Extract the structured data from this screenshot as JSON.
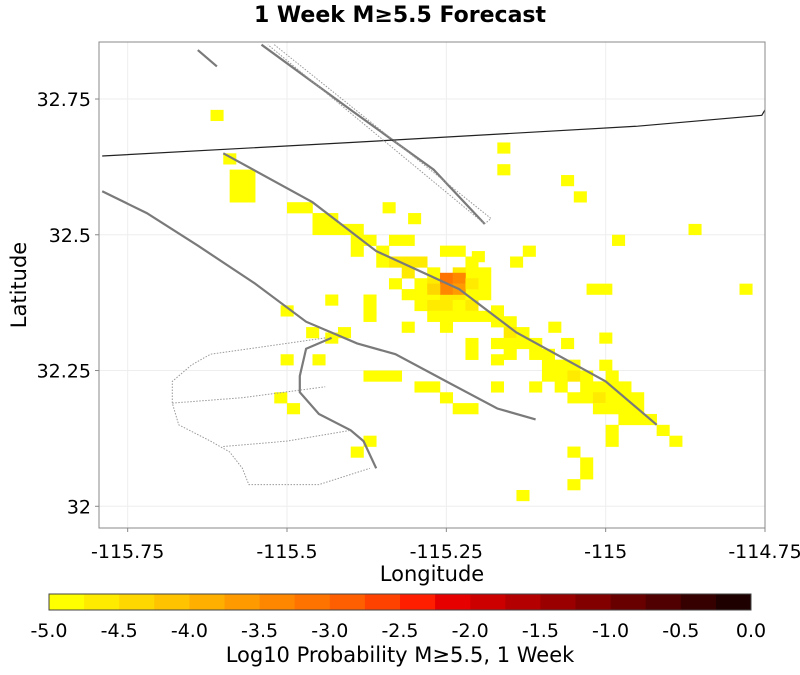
{
  "chart_data": {
    "type": "heatmap",
    "title": "1 Week M≥5.5 Forecast",
    "xlabel": "Longitude",
    "ylabel": "Latitude",
    "xlim": [
      -115.795,
      -114.75
    ],
    "ylim": [
      31.96,
      32.855
    ],
    "grid": true,
    "cell_size_deg": 0.02,
    "x_ticks": [
      {
        "value": -115.75,
        "label": "-115.75"
      },
      {
        "value": -115.5,
        "label": "-115.5"
      },
      {
        "value": -115.25,
        "label": "-115.25"
      },
      {
        "value": -115,
        "label": "-115"
      },
      {
        "value": -114.75,
        "label": "-114.75"
      }
    ],
    "y_ticks": [
      {
        "value": 32.75,
        "label": "32.75"
      },
      {
        "value": 32.5,
        "label": "32.5"
      },
      {
        "value": 32.25,
        "label": "32.25"
      },
      {
        "value": 32,
        "label": "32"
      }
    ],
    "colorbar": {
      "label": "Log10 Probability M≥5.5, 1 Week",
      "min": -5.0,
      "max": 0.0,
      "tick_labels": [
        "-5.0",
        "-4.5",
        "-4.0",
        "-3.5",
        "-3.0",
        "-2.5",
        "-2.0",
        "-1.5",
        "-1.0",
        "-0.5",
        "0.0"
      ],
      "colors": [
        "#ffff00",
        "#ffeb00",
        "#ffd700",
        "#ffc300",
        "#ffaf00",
        "#ff9b00",
        "#ff8700",
        "#ff7300",
        "#ff5f00",
        "#ff4200",
        "#ff1e00",
        "#e60000",
        "#cd0000",
        "#b40000",
        "#9b0000",
        "#820000",
        "#690000",
        "#500000",
        "#370000",
        "#1e0000"
      ]
    },
    "cells": [
      [
        -115.61,
        32.72,
        -4.9
      ],
      [
        -115.59,
        32.64,
        -4.9
      ],
      [
        -115.58,
        32.61,
        -4.9
      ],
      [
        -115.56,
        32.61,
        -4.9
      ],
      [
        -115.58,
        32.59,
        -4.9
      ],
      [
        -115.56,
        32.59,
        -4.9
      ],
      [
        -115.58,
        32.57,
        -4.9
      ],
      [
        -115.56,
        32.57,
        -4.9
      ],
      [
        -115.16,
        32.66,
        -4.9
      ],
      [
        -115.16,
        32.62,
        -4.9
      ],
      [
        -115.06,
        32.6,
        -4.9
      ],
      [
        -115.04,
        32.57,
        -4.9
      ],
      [
        -115.34,
        32.55,
        -4.9
      ],
      [
        -115.3,
        32.53,
        -4.9
      ],
      [
        -115.49,
        32.55,
        -4.9
      ],
      [
        -115.47,
        32.55,
        -4.9
      ],
      [
        -115.45,
        32.53,
        -4.9
      ],
      [
        -115.43,
        32.53,
        -4.9
      ],
      [
        -115.41,
        32.51,
        -4.9
      ],
      [
        -115.39,
        32.51,
        -4.9
      ],
      [
        -115.45,
        32.51,
        -4.9
      ],
      [
        -115.43,
        32.51,
        -4.9
      ],
      [
        -115.39,
        32.49,
        -4.9
      ],
      [
        -115.37,
        32.49,
        -4.9
      ],
      [
        -115.33,
        32.49,
        -4.9
      ],
      [
        -115.31,
        32.49,
        -4.9
      ],
      [
        -114.86,
        32.51,
        -4.9
      ],
      [
        -114.98,
        32.49,
        -4.9
      ],
      [
        -115.39,
        32.47,
        -4.9
      ],
      [
        -115.35,
        32.47,
        -4.9
      ],
      [
        -115.35,
        32.45,
        -4.9
      ],
      [
        -115.25,
        32.47,
        -4.9
      ],
      [
        -115.23,
        32.47,
        -4.9
      ],
      [
        -115.21,
        32.45,
        -4.9
      ],
      [
        -115.2,
        32.46,
        -4.9
      ],
      [
        -115.21,
        32.43,
        -4.9
      ],
      [
        -115.12,
        32.47,
        -4.9
      ],
      [
        -115.14,
        32.45,
        -4.9
      ],
      [
        -115.33,
        32.45,
        -4.75
      ],
      [
        -115.31,
        32.43,
        -4.75
      ],
      [
        -115.31,
        32.45,
        -4.75
      ],
      [
        -115.29,
        32.45,
        -4.75
      ],
      [
        -115.29,
        32.41,
        -4.9
      ],
      [
        -115.27,
        32.41,
        -4.75
      ],
      [
        -115.27,
        32.43,
        -4.9
      ],
      [
        -115.23,
        32.43,
        -4.75
      ],
      [
        -115.19,
        32.43,
        -4.9
      ],
      [
        -115.33,
        32.41,
        -4.9
      ],
      [
        -115.31,
        32.39,
        -4.9
      ],
      [
        -115.29,
        32.39,
        -4.9
      ],
      [
        -115.27,
        32.39,
        -4.9
      ],
      [
        -115.25,
        32.39,
        -4.75
      ],
      [
        -115.23,
        32.39,
        -4.75
      ],
      [
        -115.21,
        32.39,
        -4.9
      ],
      [
        -115.19,
        32.41,
        -4.9
      ],
      [
        -115.29,
        32.37,
        -4.9
      ],
      [
        -115.27,
        32.37,
        -4.75
      ],
      [
        -115.25,
        32.37,
        -4.75
      ],
      [
        -115.23,
        32.37,
        -4.9
      ],
      [
        -115.21,
        32.37,
        -4.75
      ],
      [
        -115.19,
        32.39,
        -4.9
      ],
      [
        -115.27,
        32.35,
        -4.9
      ],
      [
        -115.25,
        32.35,
        -4.9
      ],
      [
        -115.23,
        32.35,
        -4.9
      ],
      [
        -115.21,
        32.35,
        -4.9
      ],
      [
        -115.19,
        32.35,
        -4.9
      ],
      [
        -115.25,
        32.42,
        -3.1
      ],
      [
        -115.23,
        32.42,
        -3.4
      ],
      [
        -115.25,
        32.4,
        -3.4
      ],
      [
        -115.23,
        32.4,
        -3.6
      ],
      [
        -115.27,
        32.4,
        -4.5
      ],
      [
        -115.21,
        32.41,
        -4.6
      ],
      [
        -115.02,
        32.4,
        -4.9
      ],
      [
        -115.0,
        32.4,
        -4.9
      ],
      [
        -114.78,
        32.4,
        -4.9
      ],
      [
        -115.43,
        32.38,
        -4.9
      ],
      [
        -115.37,
        32.38,
        -4.9
      ],
      [
        -115.37,
        32.36,
        -4.9
      ],
      [
        -115.17,
        32.36,
        -4.9
      ],
      [
        -115.17,
        32.34,
        -4.9
      ],
      [
        -115.15,
        32.34,
        -4.9
      ],
      [
        -115.15,
        32.32,
        -4.75
      ],
      [
        -115.13,
        32.32,
        -4.9
      ],
      [
        -115.11,
        32.3,
        -4.9
      ],
      [
        -115.17,
        32.3,
        -4.9
      ],
      [
        -115.15,
        32.3,
        -4.9
      ],
      [
        -115.13,
        32.3,
        -4.9
      ],
      [
        -115.08,
        32.33,
        -4.9
      ],
      [
        -115.06,
        32.3,
        -4.9
      ],
      [
        -115.21,
        32.3,
        -4.9
      ],
      [
        -115.21,
        32.28,
        -4.9
      ],
      [
        -115.15,
        32.28,
        -4.9
      ],
      [
        -115.11,
        32.28,
        -4.9
      ],
      [
        -115.09,
        32.28,
        -4.9
      ],
      [
        -115.09,
        32.26,
        -4.9
      ],
      [
        -115.07,
        32.26,
        -4.9
      ],
      [
        -115.05,
        32.26,
        -4.9
      ],
      [
        -115.09,
        32.24,
        -4.9
      ],
      [
        -115.07,
        32.24,
        -4.9
      ],
      [
        -115.05,
        32.24,
        -4.75
      ],
      [
        -115.03,
        32.24,
        -4.9
      ],
      [
        -115.07,
        32.22,
        -4.9
      ],
      [
        -115.03,
        32.22,
        -4.9
      ],
      [
        -115.01,
        32.22,
        -4.9
      ],
      [
        -114.99,
        32.22,
        -4.9
      ],
      [
        -115.05,
        32.2,
        -4.9
      ],
      [
        -115.03,
        32.2,
        -4.9
      ],
      [
        -115.01,
        32.2,
        -4.75
      ],
      [
        -114.99,
        32.2,
        -4.9
      ],
      [
        -114.97,
        32.2,
        -4.9
      ],
      [
        -115.01,
        32.18,
        -4.9
      ],
      [
        -114.99,
        32.18,
        -4.9
      ],
      [
        -114.97,
        32.18,
        -4.9
      ],
      [
        -114.95,
        32.18,
        -4.9
      ],
      [
        -114.97,
        32.16,
        -4.9
      ],
      [
        -114.95,
        32.16,
        -4.9
      ],
      [
        -114.93,
        32.16,
        -4.9
      ],
      [
        -114.95,
        32.2,
        -4.9
      ],
      [
        -114.97,
        32.22,
        -4.9
      ],
      [
        -114.99,
        32.24,
        -4.9
      ],
      [
        -115.0,
        32.31,
        -4.9
      ],
      [
        -115.0,
        32.26,
        -4.9
      ],
      [
        -115.41,
        32.32,
        -4.9
      ],
      [
        -115.43,
        32.31,
        -4.9
      ],
      [
        -115.31,
        32.33,
        -4.9
      ],
      [
        -115.25,
        32.33,
        -4.9
      ],
      [
        -115.45,
        32.27,
        -4.9
      ],
      [
        -115.17,
        32.27,
        -4.9
      ],
      [
        -115.35,
        32.24,
        -4.9
      ],
      [
        -115.33,
        32.24,
        -4.9
      ],
      [
        -115.37,
        32.24,
        -4.9
      ],
      [
        -115.17,
        32.22,
        -4.9
      ],
      [
        -115.11,
        32.22,
        -4.9
      ],
      [
        -115.29,
        32.22,
        -4.9
      ],
      [
        -115.27,
        32.22,
        -4.9
      ],
      [
        -115.25,
        32.2,
        -4.9
      ],
      [
        -115.21,
        32.18,
        -4.9
      ],
      [
        -115.23,
        32.18,
        -4.9
      ],
      [
        -115.51,
        32.2,
        -4.9
      ],
      [
        -115.49,
        32.18,
        -4.9
      ],
      [
        -114.91,
        32.14,
        -4.9
      ],
      [
        -114.89,
        32.12,
        -4.9
      ],
      [
        -114.99,
        32.12,
        -4.9
      ],
      [
        -114.99,
        32.14,
        -4.9
      ],
      [
        -115.37,
        32.12,
        -4.9
      ],
      [
        -115.39,
        32.1,
        -4.9
      ],
      [
        -115.05,
        32.1,
        -4.9
      ],
      [
        -115.03,
        32.08,
        -4.9
      ],
      [
        -115.03,
        32.06,
        -4.9
      ],
      [
        -115.05,
        32.04,
        -4.9
      ],
      [
        -115.13,
        32.02,
        -4.9
      ],
      [
        -115.5,
        32.36,
        -4.9
      ],
      [
        -115.5,
        32.27,
        -4.9
      ],
      [
        -115.46,
        32.32,
        -4.9
      ],
      [
        -115.37,
        32.35,
        -4.9
      ]
    ],
    "faults": [
      {
        "style": "thick",
        "points": [
          [
            -115.64,
            32.84
          ],
          [
            -115.61,
            32.81
          ]
        ]
      },
      {
        "style": "thick",
        "points": [
          [
            -115.54,
            32.85
          ],
          [
            -115.4,
            32.73
          ],
          [
            -115.27,
            32.62
          ],
          [
            -115.19,
            32.52
          ]
        ]
      },
      {
        "style": "thick",
        "points": [
          [
            -115.6,
            32.65
          ],
          [
            -115.46,
            32.56
          ],
          [
            -115.36,
            32.47
          ],
          [
            -115.23,
            32.4
          ],
          [
            -115.14,
            32.32
          ],
          [
            -115.0,
            32.23
          ],
          [
            -114.92,
            32.15
          ]
        ]
      },
      {
        "style": "thick",
        "points": [
          [
            -115.79,
            32.58
          ],
          [
            -115.72,
            32.54
          ],
          [
            -115.64,
            32.48
          ],
          [
            -115.55,
            32.41
          ],
          [
            -115.47,
            32.34
          ],
          [
            -115.39,
            32.3
          ],
          [
            -115.33,
            32.28
          ],
          [
            -115.25,
            32.23
          ],
          [
            -115.17,
            32.18
          ],
          [
            -115.11,
            32.16
          ]
        ]
      },
      {
        "style": "thick",
        "points": [
          [
            -115.43,
            32.31
          ],
          [
            -115.47,
            32.29
          ],
          [
            -115.48,
            32.24
          ],
          [
            -115.48,
            32.21
          ],
          [
            -115.45,
            32.17
          ],
          [
            -115.4,
            32.14
          ],
          [
            -115.38,
            32.12
          ],
          [
            -115.36,
            32.07
          ]
        ]
      },
      {
        "style": "thin",
        "points": [
          [
            -115.79,
            32.645
          ],
          [
            -115.4,
            32.67
          ],
          [
            -114.95,
            32.7
          ],
          [
            -114.755,
            32.72
          ],
          [
            -114.75,
            32.73
          ]
        ]
      },
      {
        "style": "dotted",
        "points": [
          [
            -115.52,
            32.85
          ],
          [
            -115.18,
            32.53
          ],
          [
            -115.19,
            32.52
          ],
          [
            -115.53,
            32.85
          ]
        ]
      },
      {
        "style": "dotted",
        "points": [
          [
            -115.44,
            32.31
          ],
          [
            -115.56,
            32.29
          ],
          [
            -115.62,
            32.28
          ],
          [
            -115.65,
            32.26
          ],
          [
            -115.68,
            32.23
          ],
          [
            -115.68,
            32.19
          ],
          [
            -115.67,
            32.15
          ],
          [
            -115.62,
            32.12
          ],
          [
            -115.59,
            32.1
          ],
          [
            -115.57,
            32.07
          ],
          [
            -115.56,
            32.04
          ],
          [
            -115.45,
            32.04
          ],
          [
            -115.37,
            32.07
          ]
        ]
      },
      {
        "style": "dotted",
        "points": [
          [
            -115.68,
            32.19
          ],
          [
            -115.57,
            32.2
          ],
          [
            -115.44,
            32.22
          ]
        ]
      },
      {
        "style": "dotted",
        "points": [
          [
            -115.6,
            32.11
          ],
          [
            -115.5,
            32.12
          ],
          [
            -115.4,
            32.14
          ]
        ]
      }
    ]
  }
}
